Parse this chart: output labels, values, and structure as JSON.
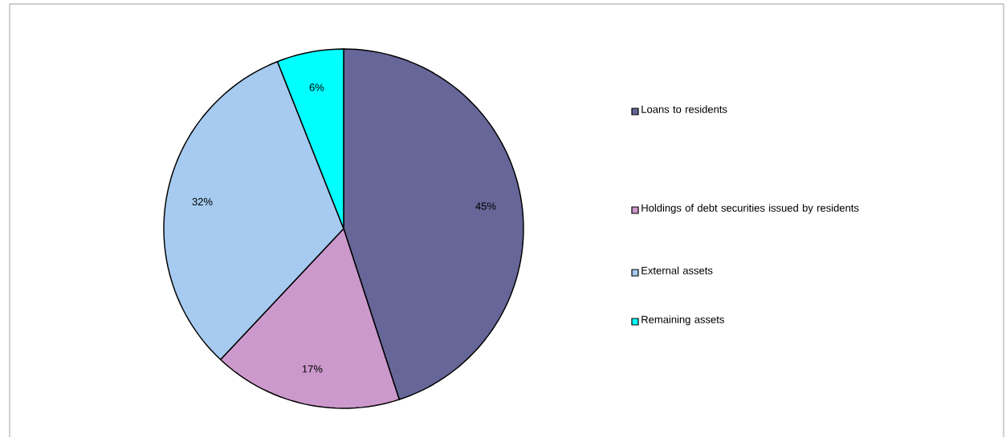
{
  "chart_data": {
    "type": "pie",
    "categories": [
      "Loans to residents",
      "Holdings of debt securities issued by residents",
      "External assets",
      "Remaining assets"
    ],
    "values": [
      45,
      17,
      32,
      6
    ],
    "colors": [
      "#666699",
      "#cc99cc",
      "#a6caf0",
      "#00ffff"
    ],
    "value_labels": [
      "45%",
      "17%",
      "32%",
      "6%"
    ],
    "legend": "right"
  }
}
